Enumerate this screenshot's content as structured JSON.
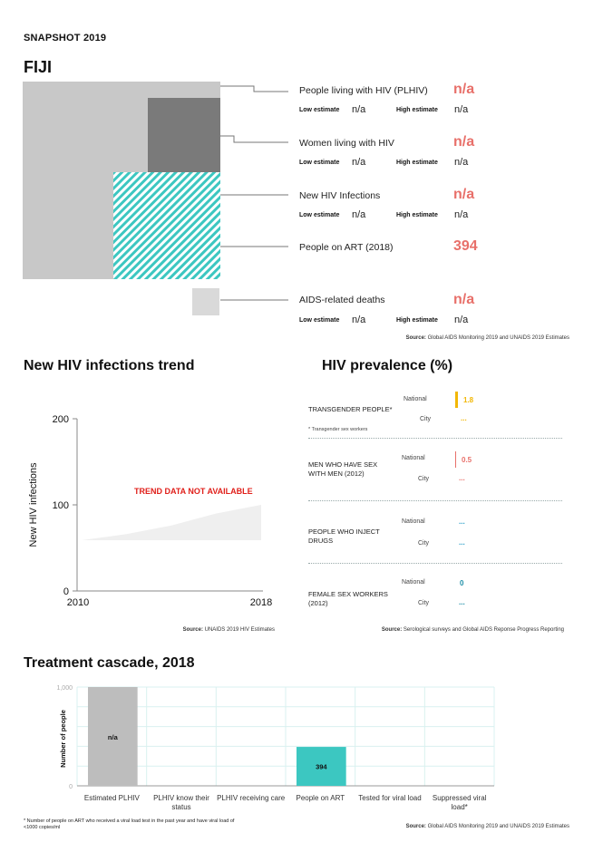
{
  "header": {
    "snapshot": "SNAPSHOT 2019",
    "country": "FIJI"
  },
  "overview": {
    "indicators": [
      {
        "label": "People living with HIV (PLHIV)",
        "value": "n/a",
        "low_label": "Low estimate",
        "low": "n/a",
        "high_label": "High estimate",
        "high": "n/a"
      },
      {
        "label": "Women living with HIV",
        "value": "n/a",
        "low_label": "Low estimate",
        "low": "n/a",
        "high_label": "High estimate",
        "high": "n/a"
      },
      {
        "label": "New HIV Infections",
        "value": "n/a",
        "low_label": "Low estimate",
        "low": "n/a",
        "high_label": "High estimate",
        "high": "n/a"
      },
      {
        "label": "People on ART (2018)",
        "value": "394"
      },
      {
        "label": "AIDS-related deaths",
        "value": "n/a",
        "low_label": "Low estimate",
        "low": "n/a",
        "high_label": "High estimate",
        "high": "n/a"
      }
    ],
    "source_label": "Source:",
    "source_text": "Global AIDS Monitoring 2019 and UNAIDS 2019 Estimates"
  },
  "trend": {
    "title": "New HIV infections trend",
    "notice": "TREND DATA NOT AVAILABLE",
    "source_label": "Source:",
    "source_text": "UNAIDS 2019 HIV Estimates"
  },
  "prevalence": {
    "title": "HIV prevalence (%)",
    "groups": [
      {
        "name": "TRANSGENDER PEOPLE*",
        "note": "* Transgender sex workers",
        "national": "1.8",
        "city": "...",
        "color": "#f2b705"
      },
      {
        "name": "MEN WHO HAVE SEX WITH MEN (2012)",
        "national": "0.5",
        "city": "...",
        "color": "#e8706a"
      },
      {
        "name": "PEOPLE WHO INJECT DRUGS",
        "national": "...",
        "city": "...",
        "color": "#2a9fc9"
      },
      {
        "name": "FEMALE SEX WORKERS (2012)",
        "national": "0",
        "city": "...",
        "color": "#1f8fa8"
      }
    ],
    "national_label": "National",
    "city_label": "City",
    "source_label": "Source:",
    "source_text": "Serological surveys and Global AIDS Reponse Progress Reporting"
  },
  "cascade": {
    "title": "Treatment cascade, 2018",
    "footnote": "* Number of people on ART who received a viral load test in the past year and have viral load of <1000 copies/ml",
    "source_label": "Source:",
    "source_text": "Global AIDS Monitoring 2019 and UNAIDS 2019 Estimates"
  },
  "chart_data": [
    {
      "type": "area",
      "title": "New HIV infections trend",
      "xlabel": "",
      "ylabel": "New HIV infections",
      "x": [
        2010,
        2012,
        2014,
        2016,
        2018
      ],
      "values": [
        59,
        66,
        76,
        90,
        100
      ],
      "xlim": [
        2010,
        2018
      ],
      "ylim": [
        0,
        200
      ],
      "yticks": [
        "0",
        "100",
        "200"
      ],
      "xticks": [
        "2010",
        "2018"
      ],
      "note": "placeholder shape; TREND DATA NOT AVAILABLE"
    },
    {
      "type": "bar",
      "title": "Treatment cascade, 2018",
      "ylabel": "Number of people",
      "categories": [
        "Estimated PLHIV",
        "PLHIV know their status",
        "PLHIV receiving care",
        "People on ART",
        "Tested for viral load",
        "Suppressed viral load*"
      ],
      "values": [
        1000,
        null,
        null,
        394,
        null,
        null
      ],
      "data_labels": [
        "n/a",
        "",
        "",
        "394",
        "",
        ""
      ],
      "ylim": [
        0,
        1000
      ],
      "yticks": [
        "0",
        "1,000"
      ],
      "colors": [
        "#bdbdbd",
        "#bdbdbd",
        "#bdbdbd",
        "#3cc7c1",
        "#bdbdbd",
        "#bdbdbd"
      ]
    }
  ]
}
